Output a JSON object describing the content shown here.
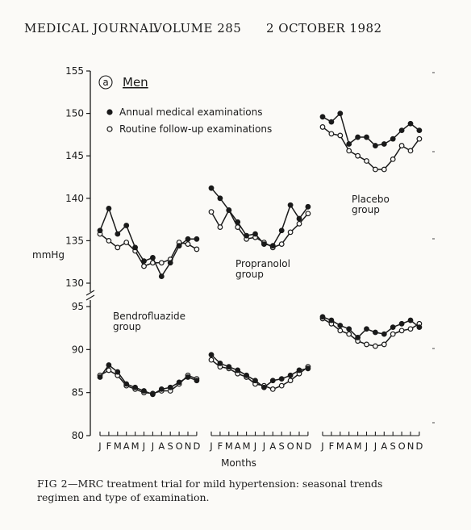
{
  "header": {
    "journal": "MEDICAL JOURNAL",
    "volume": "VOLUME 285",
    "date": "2 OCTOBER 1982"
  },
  "caption": {
    "fig_label": "FIG 2",
    "text": "—MRC treatment trial for mild hypertension: seasonal trends",
    "line2": "regimen and type of examination."
  },
  "chart_data": {
    "type": "line",
    "panel_label": "a",
    "panel_title": "Men",
    "ylabel": "mmHg",
    "xlabel": "Months",
    "month_labels": [
      "J",
      "F",
      "M",
      "A",
      "M",
      "J",
      "J",
      "A",
      "S",
      "O",
      "N",
      "D"
    ],
    "upper_ylim": [
      130,
      155
    ],
    "upper_yticks": [
      130,
      135,
      140,
      145,
      150,
      155
    ],
    "lower_ylim": [
      80,
      95
    ],
    "lower_yticks": [
      80,
      85,
      90,
      95
    ],
    "legend": [
      {
        "marker": "filled",
        "label": "Annual medical examinations"
      },
      {
        "marker": "open",
        "label": "Routine follow-up examinations"
      }
    ],
    "groups": [
      {
        "name": "Bendrofluazide group",
        "label_lines": [
          "Bendrofluazide",
          "group"
        ],
        "upper_annual": [
          136.2,
          138.8,
          135.8,
          136.8,
          134.2,
          132.6,
          133.0,
          130.8,
          132.4,
          134.4,
          135.2,
          135.2
        ],
        "upper_routine": [
          135.8,
          135.0,
          134.2,
          134.8,
          133.8,
          132.0,
          132.4,
          132.4,
          132.8,
          134.8,
          134.6,
          134.0
        ],
        "lower_annual": [
          86.8,
          88.2,
          87.4,
          86.0,
          85.6,
          85.2,
          84.8,
          85.4,
          85.6,
          86.2,
          86.8,
          86.4
        ],
        "lower_routine": [
          87.0,
          87.6,
          87.0,
          85.8,
          85.4,
          85.0,
          84.9,
          85.2,
          85.2,
          86.0,
          87.0,
          86.6
        ]
      },
      {
        "name": "Propranolol group",
        "label_lines": [
          "Propranolol",
          "group"
        ],
        "upper_annual": [
          141.2,
          140.0,
          138.6,
          137.2,
          135.6,
          135.8,
          134.6,
          134.4,
          136.2,
          139.2,
          137.6,
          139.0
        ],
        "upper_routine": [
          138.4,
          136.6,
          138.6,
          136.6,
          135.2,
          135.4,
          134.8,
          134.2,
          134.6,
          136.0,
          137.0,
          138.2
        ],
        "lower_annual": [
          89.4,
          88.4,
          88.0,
          87.6,
          87.0,
          86.4,
          85.6,
          86.4,
          86.6,
          87.0,
          87.6,
          87.8
        ],
        "lower_routine": [
          88.8,
          88.0,
          87.8,
          87.2,
          86.8,
          86.0,
          85.8,
          85.4,
          85.8,
          86.4,
          87.2,
          88.0
        ]
      },
      {
        "name": "Placebo group",
        "label_lines": [
          "Placebo",
          "group"
        ],
        "upper_annual": [
          149.6,
          149.0,
          150.0,
          146.4,
          147.2,
          147.2,
          146.2,
          146.4,
          147.0,
          148.0,
          148.8,
          148.0
        ],
        "upper_routine": [
          148.4,
          147.6,
          147.4,
          145.6,
          145.0,
          144.4,
          143.4,
          143.4,
          144.6,
          146.2,
          145.6,
          147.0
        ],
        "lower_annual": [
          93.8,
          93.4,
          92.8,
          92.4,
          91.4,
          92.4,
          92.0,
          91.8,
          92.6,
          93.0,
          93.4,
          92.6
        ],
        "lower_routine": [
          93.6,
          93.0,
          92.2,
          91.8,
          91.0,
          90.6,
          90.4,
          90.6,
          91.8,
          92.2,
          92.4,
          93.0
        ]
      }
    ]
  }
}
